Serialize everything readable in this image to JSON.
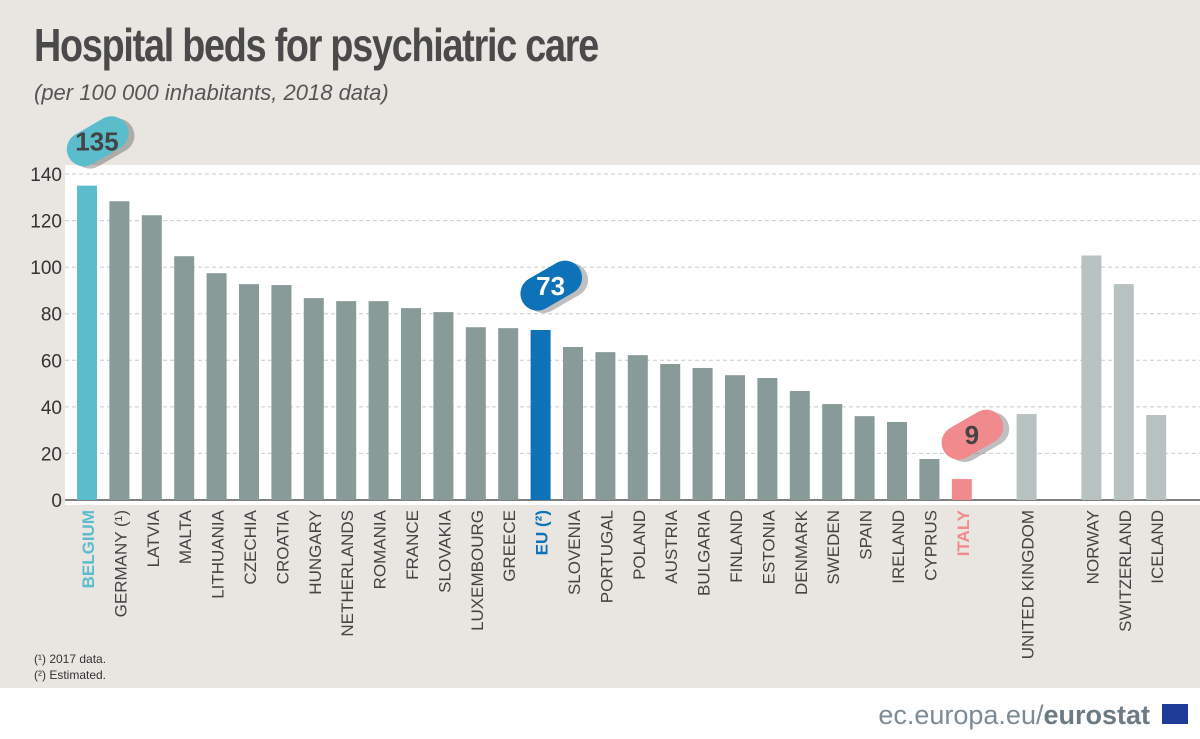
{
  "title": "Hospital beds for psychiatric care",
  "subtitle": "(per 100 000 inhabitants, 2018 data)",
  "footnotes": [
    "(¹) 2017 data.",
    "(²) Estimated."
  ],
  "footer": {
    "site": "ec.europa.eu/",
    "brand": "eurostat"
  },
  "colors": {
    "default": "#889b98",
    "belgium": "#5bbccc",
    "eu": "#0e72b9",
    "italy": "#f08a8c",
    "non_eu": "#b8c2c0"
  },
  "chart_data": {
    "type": "bar",
    "title": "Hospital beds for psychiatric care",
    "subtitle": "(per 100 000 inhabitants, 2018 data)",
    "ylim": [
      0,
      140
    ],
    "yticks": [
      0,
      20,
      40,
      60,
      80,
      100,
      120,
      140
    ],
    "grid": true,
    "categories": [
      "BELGIUM",
      "GERMANY (¹)",
      "LATVIA",
      "MALTA",
      "LITHUANIA",
      "CZECHIA",
      "CROATIA",
      "HUNGARY",
      "NETHERLANDS",
      "ROMANIA",
      "FRANCE",
      "SLOVAKIA",
      "LUXEMBOURG",
      "GREECE",
      "EU (²)",
      "SLOVENIA",
      "PORTUGAL",
      "POLAND",
      "AUSTRIA",
      "BULGARIA",
      "FINLAND",
      "ESTONIA",
      "DENMARK",
      "SWEDEN",
      "SPAIN",
      "IRELAND",
      "CYPRUS",
      "ITALY",
      "UNITED KINGDOM",
      "NORWAY",
      "SWITZERLAND",
      "ICELAND"
    ],
    "values": [
      135,
      128.3,
      122.3,
      104.7,
      97.4,
      92.7,
      92.3,
      86.7,
      85.4,
      85.4,
      82.4,
      80.7,
      74.2,
      73.8,
      73,
      65.7,
      63.5,
      62.2,
      58.4,
      56.7,
      53.6,
      52.4,
      46.8,
      41.2,
      36,
      33.5,
      17.6,
      9,
      36.9,
      105,
      92.7,
      36.5
    ],
    "highlights": [
      {
        "category": "BELGIUM",
        "label": "135",
        "color": "#5bbccc"
      },
      {
        "category": "EU (²)",
        "label": "73",
        "color": "#0e72b9"
      },
      {
        "category": "ITALY",
        "label": "9",
        "color": "#f08a8c"
      }
    ]
  }
}
